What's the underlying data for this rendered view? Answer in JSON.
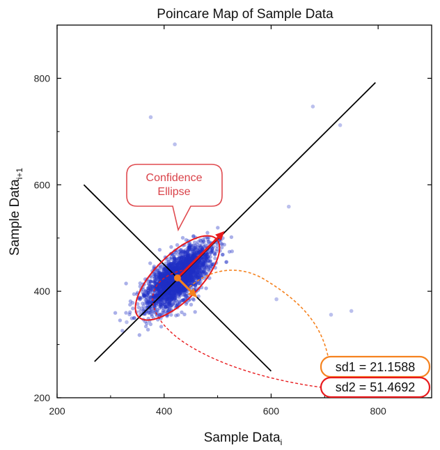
{
  "colors": {
    "points": "#1f2fc4",
    "red": "#e8191c",
    "orange": "#f5821f",
    "callout_border": "#e04a4f",
    "callout_text": "#d94148",
    "line": "#000000"
  },
  "callout": {
    "line1": "Confidence",
    "line2": "Ellipse"
  },
  "stats": {
    "sd1_label": "sd1 = 21.1588",
    "sd2_label": "sd2 = 51.4692"
  },
  "chart_data": {
    "type": "scatter",
    "title": "Poincare Map of Sample Data",
    "xlabel": {
      "main": "Sample Data",
      "sub": "i"
    },
    "ylabel": {
      "main": "Sample Data",
      "sub": "i+1"
    },
    "xlim": [
      200,
      900
    ],
    "ylim": [
      200,
      900
    ],
    "xticks": [
      200,
      400,
      600,
      800
    ],
    "yticks": [
      200,
      400,
      600,
      800
    ],
    "grid": false,
    "cloud": {
      "center": [
        425,
        425
      ],
      "n": 2600,
      "sd_major": 38,
      "sd_minor": 17
    },
    "outliers": [
      [
        375,
        727
      ],
      [
        420,
        676
      ],
      [
        678,
        747
      ],
      [
        729,
        712
      ],
      [
        633,
        559
      ],
      [
        750,
        363
      ],
      [
        712,
        356
      ],
      [
        330,
        342
      ],
      [
        610,
        385
      ]
    ],
    "identity_line": [
      [
        270,
        268
      ],
      [
        795,
        792
      ]
    ],
    "perpendicular_line": [
      [
        250,
        600
      ],
      [
        600,
        250
      ]
    ],
    "ellipse": {
      "center": [
        425,
        425
      ],
      "sd1": 21.1588,
      "sd2": 51.4692,
      "scale": 2
    },
    "sd2_arrow": [
      [
        425,
        425
      ],
      [
        513,
        513
      ]
    ],
    "sd1_arrow": [
      [
        425,
        425
      ],
      [
        462,
        388
      ]
    ]
  }
}
